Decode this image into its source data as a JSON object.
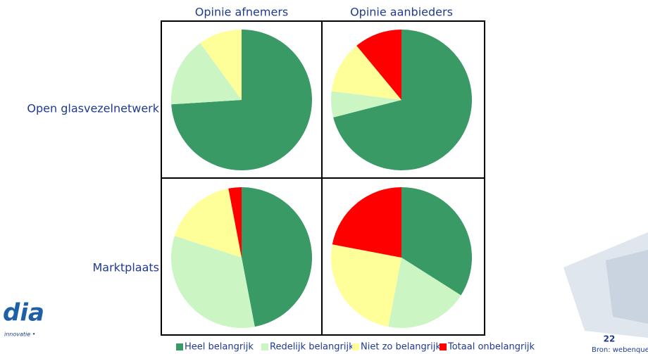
{
  "columns": [
    "Opinie afnemers",
    "Opinie aanbieders"
  ],
  "rows": [
    "Open glasvezelnetwerk",
    "Marktplaats"
  ],
  "legend": [
    {
      "name": "Heel belangrijk",
      "color": "#3a9a66"
    },
    {
      "name": "Redelijk belangrijk",
      "color": "#ccf5c4"
    },
    {
      "name": "Niet zo belangrijk",
      "color": "#ffff99"
    },
    {
      "name": "Totaal onbelangrijk",
      "color": "#ff0000"
    }
  ],
  "chart_data": [
    {
      "type": "pie",
      "values": [
        74,
        16,
        10,
        0
      ]
    },
    {
      "type": "pie",
      "values": [
        71,
        6,
        12,
        11
      ]
    },
    {
      "type": "pie",
      "values": [
        47,
        33,
        17,
        3
      ]
    },
    {
      "type": "pie",
      "values": [
        34,
        19,
        25,
        22
      ]
    }
  ],
  "footer": {
    "page": "22",
    "source": "Bron: webenquete",
    "logo": "dia",
    "tagline": "innovatie •"
  }
}
